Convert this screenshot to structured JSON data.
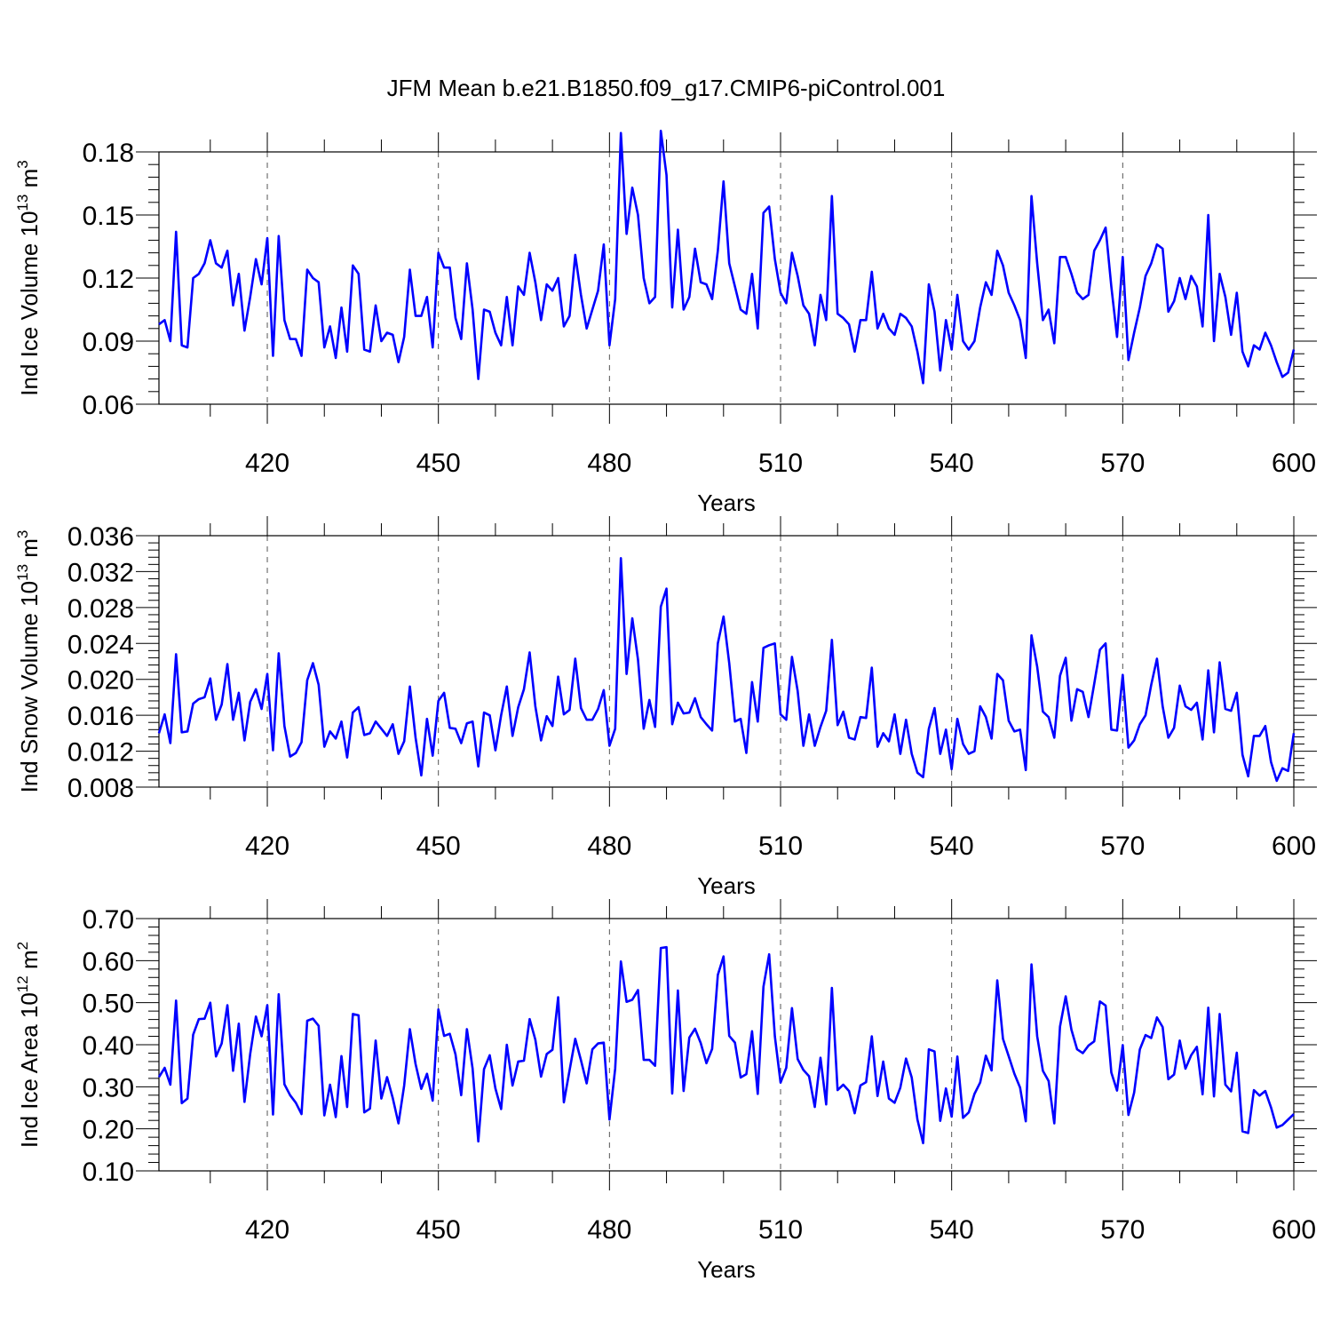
{
  "title": "JFM Mean b.e21.B1850.f09_g17.CMIP6-piControl.001",
  "chart_data": [
    {
      "type": "line",
      "xlabel": "Years",
      "ylabel": {
        "prefix": "Ind Ice Volume 10",
        "sup1": "13",
        "mid": " m",
        "sup2": "3"
      },
      "xlim": [
        401,
        600
      ],
      "ylim": [
        0.06,
        0.18
      ],
      "yticks": [
        0.06,
        0.09,
        0.12,
        0.15,
        0.18
      ],
      "ytick_labels": [
        "0.06",
        "0.09",
        "0.12",
        "0.15",
        "0.18"
      ],
      "xticks": [
        420,
        450,
        480,
        510,
        540,
        570,
        600
      ],
      "xtick_labels": [
        "420",
        "450",
        "480",
        "510",
        "540",
        "570",
        "600"
      ],
      "gridlines": "vertical dashed at major x ticks",
      "color": "#0000ff",
      "series": [
        {
          "name": "Ind Ice Volume",
          "x_start": 401,
          "values": [
            0.098,
            0.1,
            0.09,
            0.142,
            0.088,
            0.087,
            0.12,
            0.122,
            0.127,
            0.138,
            0.127,
            0.125,
            0.133,
            0.107,
            0.122,
            0.095,
            0.111,
            0.129,
            0.117,
            0.139,
            0.083,
            0.14,
            0.1,
            0.091,
            0.091,
            0.083,
            0.124,
            0.12,
            0.118,
            0.087,
            0.097,
            0.082,
            0.106,
            0.085,
            0.126,
            0.122,
            0.086,
            0.085,
            0.107,
            0.09,
            0.094,
            0.093,
            0.08,
            0.092,
            0.124,
            0.102,
            0.102,
            0.111,
            0.087,
            0.132,
            0.125,
            0.125,
            0.101,
            0.091,
            0.127,
            0.105,
            0.072,
            0.105,
            0.104,
            0.094,
            0.088,
            0.111,
            0.088,
            0.116,
            0.112,
            0.132,
            0.118,
            0.1,
            0.117,
            0.114,
            0.12,
            0.097,
            0.102,
            0.131,
            0.112,
            0.096,
            0.105,
            0.114,
            0.136,
            0.088,
            0.11,
            0.189,
            0.141,
            0.163,
            0.15,
            0.12,
            0.108,
            0.111,
            0.19,
            0.169,
            0.106,
            0.143,
            0.105,
            0.111,
            0.134,
            0.118,
            0.117,
            0.11,
            0.133,
            0.166,
            0.127,
            0.116,
            0.105,
            0.103,
            0.122,
            0.096,
            0.151,
            0.154,
            0.129,
            0.113,
            0.108,
            0.132,
            0.121,
            0.107,
            0.103,
            0.088,
            0.112,
            0.1,
            0.159,
            0.103,
            0.101,
            0.098,
            0.085,
            0.1,
            0.1,
            0.123,
            0.096,
            0.103,
            0.096,
            0.093,
            0.103,
            0.101,
            0.097,
            0.085,
            0.07,
            0.117,
            0.104,
            0.076,
            0.1,
            0.086,
            0.112,
            0.09,
            0.086,
            0.09,
            0.106,
            0.118,
            0.112,
            0.133,
            0.126,
            0.113,
            0.107,
            0.1,
            0.082,
            0.159,
            0.127,
            0.1,
            0.105,
            0.089,
            0.13,
            0.13,
            0.122,
            0.113,
            0.11,
            0.112,
            0.133,
            0.138,
            0.144,
            0.116,
            0.092,
            0.13,
            0.081,
            0.094,
            0.106,
            0.121,
            0.127,
            0.136,
            0.134,
            0.104,
            0.109,
            0.12,
            0.11,
            0.121,
            0.116,
            0.097,
            0.15,
            0.09,
            0.122,
            0.111,
            0.093,
            0.113,
            0.085,
            0.078,
            0.088,
            0.086,
            0.094,
            0.088,
            0.08,
            0.073,
            0.075,
            0.086
          ]
        }
      ]
    },
    {
      "type": "line",
      "xlabel": "Years",
      "ylabel": {
        "prefix": "Ind Snow Volume 10",
        "sup1": "13",
        "mid": " m",
        "sup2": "3"
      },
      "xlim": [
        401,
        600
      ],
      "ylim": [
        0.008,
        0.036
      ],
      "yticks": [
        0.008,
        0.012,
        0.016,
        0.02,
        0.024,
        0.028,
        0.032,
        0.036
      ],
      "ytick_labels": [
        "0.008",
        "0.012",
        "0.016",
        "0.020",
        "0.024",
        "0.028",
        "0.032",
        "0.036"
      ],
      "xticks": [
        420,
        450,
        480,
        510,
        540,
        570,
        600
      ],
      "xtick_labels": [
        "420",
        "450",
        "480",
        "510",
        "540",
        "570",
        "600"
      ],
      "gridlines": "vertical dashed at major x ticks",
      "color": "#0000ff",
      "series": [
        {
          "name": "Ind Snow Volume",
          "x_start": 401,
          "values": [
            0.014,
            0.0161,
            0.0129,
            0.0228,
            0.0141,
            0.0142,
            0.0173,
            0.0178,
            0.018,
            0.0201,
            0.0155,
            0.0172,
            0.0217,
            0.0155,
            0.0185,
            0.0132,
            0.0175,
            0.0189,
            0.0167,
            0.0206,
            0.0121,
            0.0229,
            0.0148,
            0.0114,
            0.0118,
            0.013,
            0.0199,
            0.0218,
            0.0194,
            0.0125,
            0.0142,
            0.0134,
            0.0153,
            0.0113,
            0.0163,
            0.0169,
            0.0138,
            0.014,
            0.0153,
            0.0145,
            0.0137,
            0.015,
            0.0117,
            0.0131,
            0.0192,
            0.0135,
            0.0093,
            0.0156,
            0.0115,
            0.0176,
            0.0185,
            0.0146,
            0.0145,
            0.0129,
            0.0151,
            0.0153,
            0.0103,
            0.0163,
            0.016,
            0.0121,
            0.016,
            0.0192,
            0.0137,
            0.0169,
            0.0189,
            0.023,
            0.017,
            0.0132,
            0.0159,
            0.0148,
            0.0203,
            0.0161,
            0.0166,
            0.0223,
            0.0168,
            0.0155,
            0.0155,
            0.0167,
            0.0188,
            0.0126,
            0.0145,
            0.0335,
            0.0206,
            0.0268,
            0.0222,
            0.0145,
            0.0177,
            0.0147,
            0.0281,
            0.0301,
            0.015,
            0.0174,
            0.0162,
            0.0163,
            0.0179,
            0.0158,
            0.015,
            0.0143,
            0.024,
            0.027,
            0.0218,
            0.0153,
            0.0156,
            0.0118,
            0.0197,
            0.0153,
            0.0235,
            0.0238,
            0.024,
            0.0161,
            0.0155,
            0.0225,
            0.0187,
            0.0126,
            0.0161,
            0.0126,
            0.0147,
            0.0165,
            0.0244,
            0.0149,
            0.0164,
            0.0135,
            0.0133,
            0.0158,
            0.0157,
            0.0213,
            0.0125,
            0.014,
            0.0131,
            0.0161,
            0.0117,
            0.0155,
            0.0117,
            0.0096,
            0.0091,
            0.0145,
            0.0168,
            0.0117,
            0.0144,
            0.01,
            0.0156,
            0.0128,
            0.0117,
            0.012,
            0.017,
            0.0158,
            0.0134,
            0.0206,
            0.0199,
            0.0154,
            0.0142,
            0.0144,
            0.0099,
            0.0249,
            0.0214,
            0.0164,
            0.0158,
            0.0135,
            0.0204,
            0.0224,
            0.0154,
            0.0189,
            0.0186,
            0.0158,
            0.0195,
            0.0233,
            0.024,
            0.0144,
            0.0143,
            0.0205,
            0.0124,
            0.0132,
            0.015,
            0.016,
            0.0194,
            0.0223,
            0.017,
            0.0135,
            0.0146,
            0.0193,
            0.017,
            0.0166,
            0.0174,
            0.0133,
            0.021,
            0.0141,
            0.0219,
            0.0167,
            0.0165,
            0.0185,
            0.0116,
            0.0092,
            0.0137,
            0.0137,
            0.0148,
            0.0108,
            0.0087,
            0.0101,
            0.0098,
            0.014
          ]
        }
      ]
    },
    {
      "type": "line",
      "xlabel": "Years",
      "ylabel": {
        "prefix": "Ind Ice Area 10",
        "sup1": "12",
        "mid": " m",
        "sup2": "2"
      },
      "xlim": [
        401,
        600
      ],
      "ylim": [
        0.1,
        0.7
      ],
      "yticks": [
        0.1,
        0.2,
        0.3,
        0.4,
        0.5,
        0.6,
        0.7
      ],
      "ytick_labels": [
        "0.10",
        "0.20",
        "0.30",
        "0.40",
        "0.50",
        "0.60",
        "0.70"
      ],
      "xticks": [
        420,
        450,
        480,
        510,
        540,
        570,
        600
      ],
      "xtick_labels": [
        "420",
        "450",
        "480",
        "510",
        "540",
        "570",
        "600"
      ],
      "gridlines": "vertical dashed at major x ticks",
      "color": "#0000ff",
      "series": [
        {
          "name": "Ind Ice Area",
          "x_start": 401,
          "values": [
            0.323,
            0.345,
            0.305,
            0.505,
            0.261,
            0.272,
            0.424,
            0.461,
            0.462,
            0.5,
            0.372,
            0.403,
            0.494,
            0.338,
            0.45,
            0.264,
            0.378,
            0.467,
            0.42,
            0.494,
            0.234,
            0.52,
            0.306,
            0.28,
            0.262,
            0.235,
            0.457,
            0.462,
            0.445,
            0.232,
            0.305,
            0.228,
            0.373,
            0.252,
            0.473,
            0.47,
            0.239,
            0.248,
            0.41,
            0.272,
            0.323,
            0.273,
            0.213,
            0.303,
            0.437,
            0.354,
            0.295,
            0.331,
            0.267,
            0.484,
            0.421,
            0.426,
            0.377,
            0.28,
            0.437,
            0.343,
            0.17,
            0.342,
            0.375,
            0.296,
            0.247,
            0.4,
            0.303,
            0.36,
            0.362,
            0.461,
            0.412,
            0.324,
            0.378,
            0.388,
            0.513,
            0.263,
            0.339,
            0.414,
            0.363,
            0.308,
            0.389,
            0.403,
            0.405,
            0.222,
            0.343,
            0.598,
            0.502,
            0.507,
            0.53,
            0.364,
            0.364,
            0.35,
            0.63,
            0.632,
            0.284,
            0.529,
            0.29,
            0.417,
            0.438,
            0.404,
            0.356,
            0.39,
            0.566,
            0.61,
            0.421,
            0.405,
            0.322,
            0.33,
            0.432,
            0.283,
            0.538,
            0.615,
            0.42,
            0.31,
            0.345,
            0.487,
            0.366,
            0.34,
            0.325,
            0.252,
            0.369,
            0.258,
            0.535,
            0.292,
            0.305,
            0.29,
            0.237,
            0.303,
            0.311,
            0.42,
            0.278,
            0.36,
            0.272,
            0.262,
            0.298,
            0.367,
            0.322,
            0.222,
            0.166,
            0.389,
            0.384,
            0.219,
            0.296,
            0.229,
            0.372,
            0.226,
            0.239,
            0.283,
            0.31,
            0.374,
            0.339,
            0.553,
            0.414,
            0.373,
            0.331,
            0.298,
            0.218,
            0.591,
            0.42,
            0.338,
            0.314,
            0.213,
            0.443,
            0.515,
            0.436,
            0.389,
            0.38,
            0.398,
            0.408,
            0.503,
            0.493,
            0.334,
            0.291,
            0.399,
            0.233,
            0.286,
            0.389,
            0.423,
            0.416,
            0.465,
            0.442,
            0.318,
            0.329,
            0.41,
            0.343,
            0.375,
            0.395,
            0.282,
            0.488,
            0.277,
            0.473,
            0.305,
            0.289,
            0.381,
            0.194,
            0.19,
            0.292,
            0.279,
            0.29,
            0.251,
            0.203,
            0.209,
            0.222,
            0.235
          ]
        }
      ]
    }
  ]
}
